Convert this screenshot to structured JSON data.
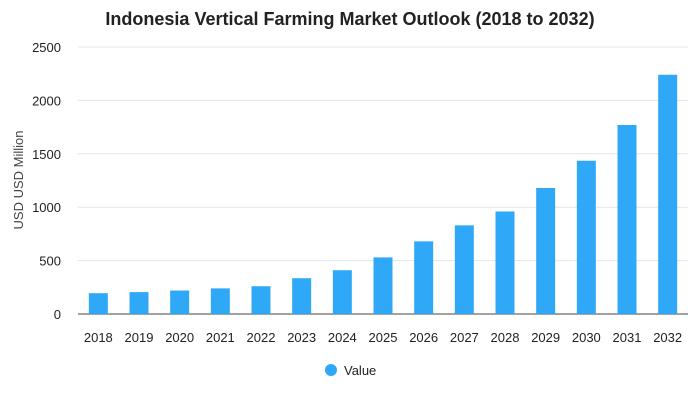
{
  "chart_data": {
    "type": "bar",
    "title": "Indonesia Vertical Farming Market Outlook (2018 to 2032)",
    "xlabel": "",
    "ylabel": "USD USD Million",
    "categories": [
      "2018",
      "2019",
      "2020",
      "2021",
      "2022",
      "2023",
      "2024",
      "2025",
      "2026",
      "2027",
      "2028",
      "2029",
      "2030",
      "2031",
      "2032"
    ],
    "series": [
      {
        "name": "Value",
        "values": [
          195,
          205,
          220,
          240,
          260,
          335,
          410,
          530,
          680,
          830,
          960,
          1180,
          1435,
          1770,
          2240
        ],
        "color": "#30a8f8"
      }
    ],
    "ylim": [
      0,
      2500
    ],
    "yticks": [
      0,
      500,
      1000,
      1500,
      2000,
      2500
    ],
    "grid": true,
    "legend": "bottom-center"
  }
}
